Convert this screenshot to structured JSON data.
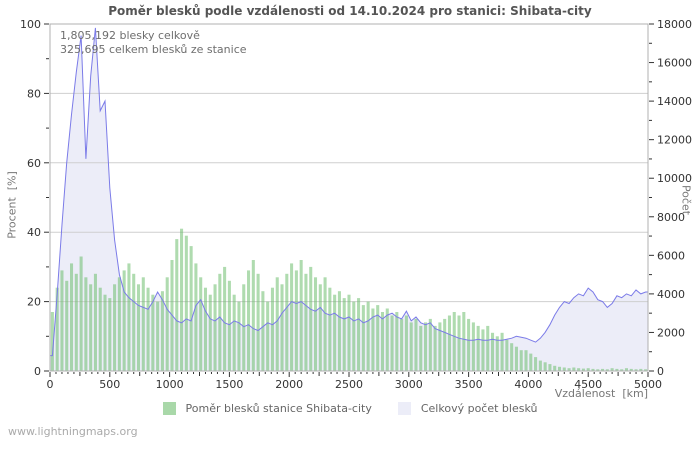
{
  "title": "Poměr blesků podle vzdálenosti od 14.10.2024 pro stanici: Shibata-city",
  "annotations": {
    "line1": "1,805,192 blesky celkově",
    "line2": "325,695 celkem blesků ze stanice"
  },
  "watermark": "www.lightningmaps.org",
  "axes": {
    "left_label": "Procent  [%]",
    "right_label": "Počet",
    "x_label": "Vzdálenost  [km]",
    "left_ticks": [
      0,
      20,
      40,
      60,
      80,
      100
    ],
    "right_ticks": [
      0,
      2000,
      4000,
      6000,
      8000,
      10000,
      12000,
      14000,
      16000,
      18000
    ],
    "x_ticks": [
      0,
      500,
      1000,
      1500,
      2000,
      2500,
      3000,
      3500,
      4000,
      4500,
      5000
    ]
  },
  "legend": [
    {
      "label": "Poměr blesků stanice Shibata-city",
      "color": "#a9d8a9"
    },
    {
      "label": "Celkový počet blesků",
      "color": "#ecedf8"
    }
  ],
  "colors": {
    "bar_fill": "rgba(110,190,110,0.55)",
    "area_fill": "#ecedf8",
    "line_stroke": "#7b7be8",
    "grid": "#cfcfcf",
    "border": "#b0b0b0",
    "tick": "#333333",
    "title": "#555555"
  },
  "chart_data": {
    "type": "bar",
    "title": "Poměr blesků podle vzdálenosti od 14.10.2024 pro stanici: Shibata-city",
    "xlabel": "Vzdálenost [km]",
    "ylabel_left": "Procent [%]",
    "ylabel_right": "Počet",
    "xlim": [
      0,
      5000
    ],
    "ylim_left": [
      0,
      100
    ],
    "ylim_right": [
      0,
      18000
    ],
    "grid": "horizontal",
    "legend_position": "bottom",
    "x_bin_start": 0,
    "x_bin_step": 40,
    "totals_shown": {
      "blesky_celkove": 1805192,
      "blesku_ze_stanice": 325695
    },
    "series": [
      {
        "name": "Poměr blesků stanice Shibata-city",
        "type": "bar",
        "axis": "left",
        "unit": "%",
        "values": [
          17,
          24,
          29,
          26,
          31,
          28,
          33,
          27,
          25,
          28,
          24,
          22,
          21,
          25,
          27,
          29,
          31,
          28,
          25,
          27,
          24,
          22,
          20,
          23,
          27,
          32,
          38,
          41,
          39,
          36,
          31,
          27,
          24,
          22,
          25,
          28,
          30,
          26,
          22,
          20,
          25,
          29,
          32,
          28,
          23,
          20,
          24,
          27,
          25,
          28,
          31,
          29,
          32,
          28,
          30,
          27,
          25,
          27,
          24,
          22,
          23,
          21,
          22,
          20,
          21,
          19,
          20,
          18,
          19,
          17,
          18,
          16,
          17,
          15,
          16,
          14,
          15,
          13,
          14,
          15,
          13,
          14,
          15,
          16,
          17,
          16,
          17,
          15,
          14,
          13,
          12,
          13,
          11,
          10,
          11,
          9,
          8,
          7,
          6,
          6,
          5,
          4,
          3,
          2.5,
          2,
          1.5,
          1.2,
          1,
          0.8,
          1,
          0.8,
          0.7,
          0.8,
          0.6,
          0.5,
          0.6,
          0.5,
          0.8,
          0.6,
          0.5,
          0.8,
          0.6,
          0.5,
          0.6,
          0.5
        ]
      },
      {
        "name": "Celkový počet blesků",
        "type": "area",
        "axis": "right",
        "unit": "count",
        "values": [
          800,
          4000,
          7600,
          10800,
          13300,
          15500,
          17400,
          11000,
          15300,
          17800,
          13500,
          14000,
          9500,
          6800,
          5000,
          4100,
          3800,
          3600,
          3400,
          3300,
          3200,
          3600,
          4100,
          3700,
          3200,
          2900,
          2600,
          2500,
          2700,
          2600,
          3400,
          3700,
          3100,
          2700,
          2600,
          2800,
          2500,
          2400,
          2600,
          2500,
          2300,
          2400,
          2200,
          2100,
          2300,
          2500,
          2400,
          2600,
          3000,
          3300,
          3600,
          3500,
          3600,
          3400,
          3200,
          3100,
          3300,
          3000,
          2900,
          3000,
          2800,
          2700,
          2800,
          2600,
          2700,
          2500,
          2600,
          2800,
          2900,
          2700,
          2900,
          3000,
          2800,
          2700,
          3100,
          2600,
          2800,
          2500,
          2400,
          2500,
          2200,
          2100,
          2000,
          1900,
          1800,
          1700,
          1650,
          1600,
          1600,
          1650,
          1600,
          1600,
          1650,
          1600,
          1600,
          1650,
          1700,
          1800,
          1750,
          1700,
          1600,
          1500,
          1700,
          2000,
          2400,
          2900,
          3300,
          3600,
          3500,
          3800,
          4000,
          3900,
          4300,
          4100,
          3700,
          3600,
          3300,
          3500,
          3900,
          3800,
          4000,
          3900,
          4200,
          4000,
          4100
        ]
      }
    ]
  }
}
